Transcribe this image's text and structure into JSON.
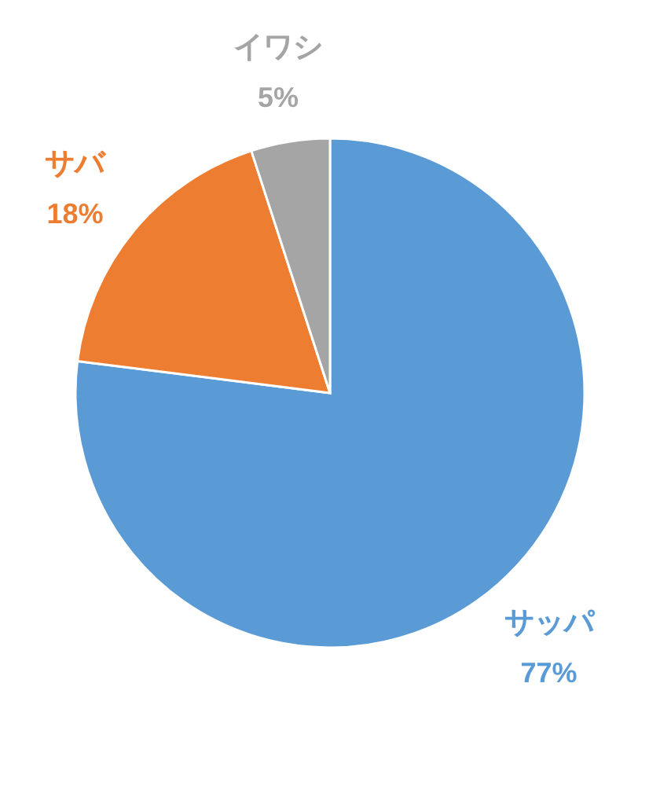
{
  "chart_data": {
    "type": "pie",
    "categories": [
      "サッパ",
      "サバ",
      "イワシ"
    ],
    "values": [
      77,
      18,
      5
    ],
    "colors": [
      "#5b9bd5",
      "#ed7d31",
      "#a5a5a5"
    ],
    "value_labels": [
      "77%",
      "18%",
      "5%"
    ]
  }
}
